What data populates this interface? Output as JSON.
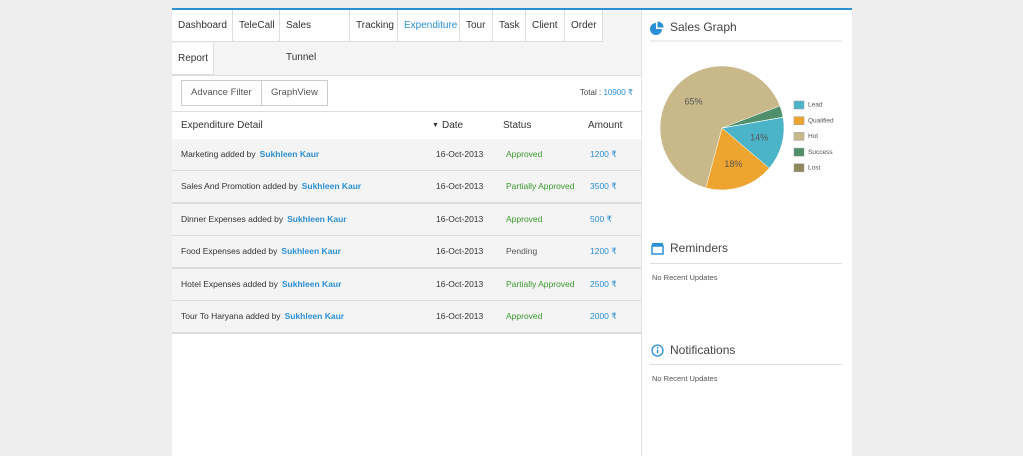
{
  "tabs": [
    "Dashboard",
    "TeleCall",
    "Sales Tunnel",
    "Tracking",
    "Expenditure",
    "Tour",
    "Task",
    "Client",
    "Order",
    "Report"
  ],
  "buttons": [
    "Advance Filter",
    "GraphView"
  ],
  "total": {
    "label": "Total :",
    "value": "10900 ₹"
  },
  "table": {
    "headers": [
      "Expenditure Detail",
      "Date",
      "Status",
      "Amount"
    ],
    "rows": [
      {
        "detail": "Marketing added by",
        "name": "Sukhleen Kaur",
        "date": "16-Oct-2013",
        "status": "Approved",
        "amount": "1200 ₹"
      },
      {
        "detail": "Sales And Promotion added by",
        "name": "Sukhleen Kaur",
        "date": "16-Oct-2013",
        "status": "Partially Approved",
        "amount": "3500 ₹"
      },
      {
        "detail": "Dinner Expenses added by",
        "name": "Sukhleen Kaur",
        "date": "16-Oct-2013",
        "status": "Approved",
        "amount": "500 ₹"
      },
      {
        "detail": "Food Expenses added by",
        "name": "Sukhleen Kaur",
        "date": "16-Oct-2013",
        "status": "Pending",
        "amount": "1200 ₹"
      },
      {
        "detail": "Hotel Expenses added by",
        "name": "Sukhleen Kaur",
        "date": "16-Oct-2013",
        "status": "Partially Approved",
        "amount": "2500 ₹"
      },
      {
        "detail": "Tour To Haryana added by",
        "name": "Sukhleen Kaur",
        "date": "16-Oct-2013",
        "status": "Approved",
        "amount": "2000 ₹"
      }
    ]
  },
  "chart_data": {
    "type": "pie",
    "title": "Sales Graph",
    "categories": [
      "Lead",
      "Qualified",
      "Hot",
      "Success",
      "Lost"
    ],
    "values": [
      14,
      18,
      65,
      3,
      0
    ],
    "value_labels": [
      "14%",
      "18%",
      "65%",
      null,
      null
    ],
    "colors": [
      "#4bb4c9",
      "#eea52f",
      "#c9b98a",
      "#4f8f6b",
      "#8e8a5c"
    ]
  },
  "reminders": {
    "title": "Reminders",
    "text": "No Recent Updates"
  },
  "notifications": {
    "title": "Notifications",
    "text": "No Recent Updates"
  }
}
